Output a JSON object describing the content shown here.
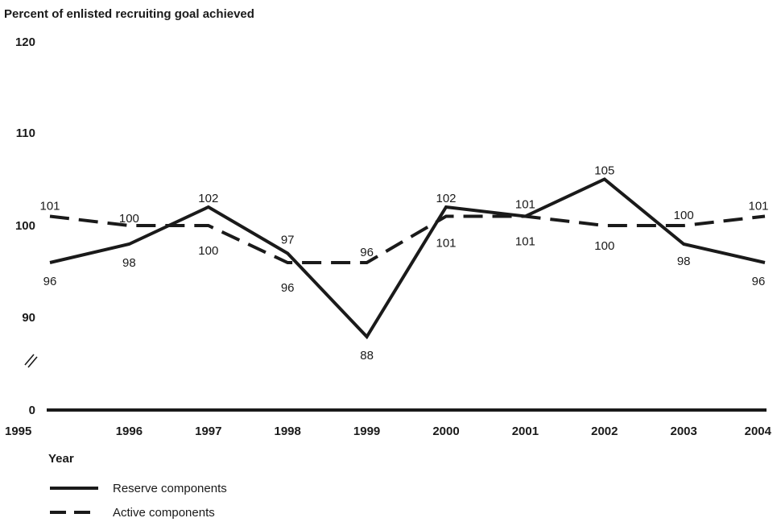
{
  "chart_data": {
    "type": "line",
    "ylabel": "Percent of enlisted recruiting goal achieved",
    "xlabel": "Year",
    "x": [
      "1995",
      "1996",
      "1997",
      "1998",
      "1999",
      "2000",
      "2001",
      "2002",
      "2003",
      "2004"
    ],
    "yticks": [
      "120",
      "110",
      "100",
      "90",
      "0"
    ],
    "axis_break": true,
    "ylim": [
      85,
      120
    ],
    "series": [
      {
        "name": "Reserve components",
        "style": "solid",
        "values": [
          96,
          98,
          102,
          97,
          88,
          102,
          101,
          105,
          98,
          96
        ],
        "labels": [
          "96",
          "98",
          "102",
          "97",
          "88",
          "102",
          "101",
          "105",
          "98",
          "96"
        ]
      },
      {
        "name": "Active components",
        "style": "dashed",
        "values": [
          101,
          100,
          100,
          96,
          96,
          101,
          101,
          100,
          100,
          101
        ],
        "labels": [
          "101",
          "100",
          "100",
          "96",
          "96",
          "101",
          "101",
          "100",
          "100",
          "101"
        ]
      }
    ],
    "line_color": "#1a1a1a"
  }
}
